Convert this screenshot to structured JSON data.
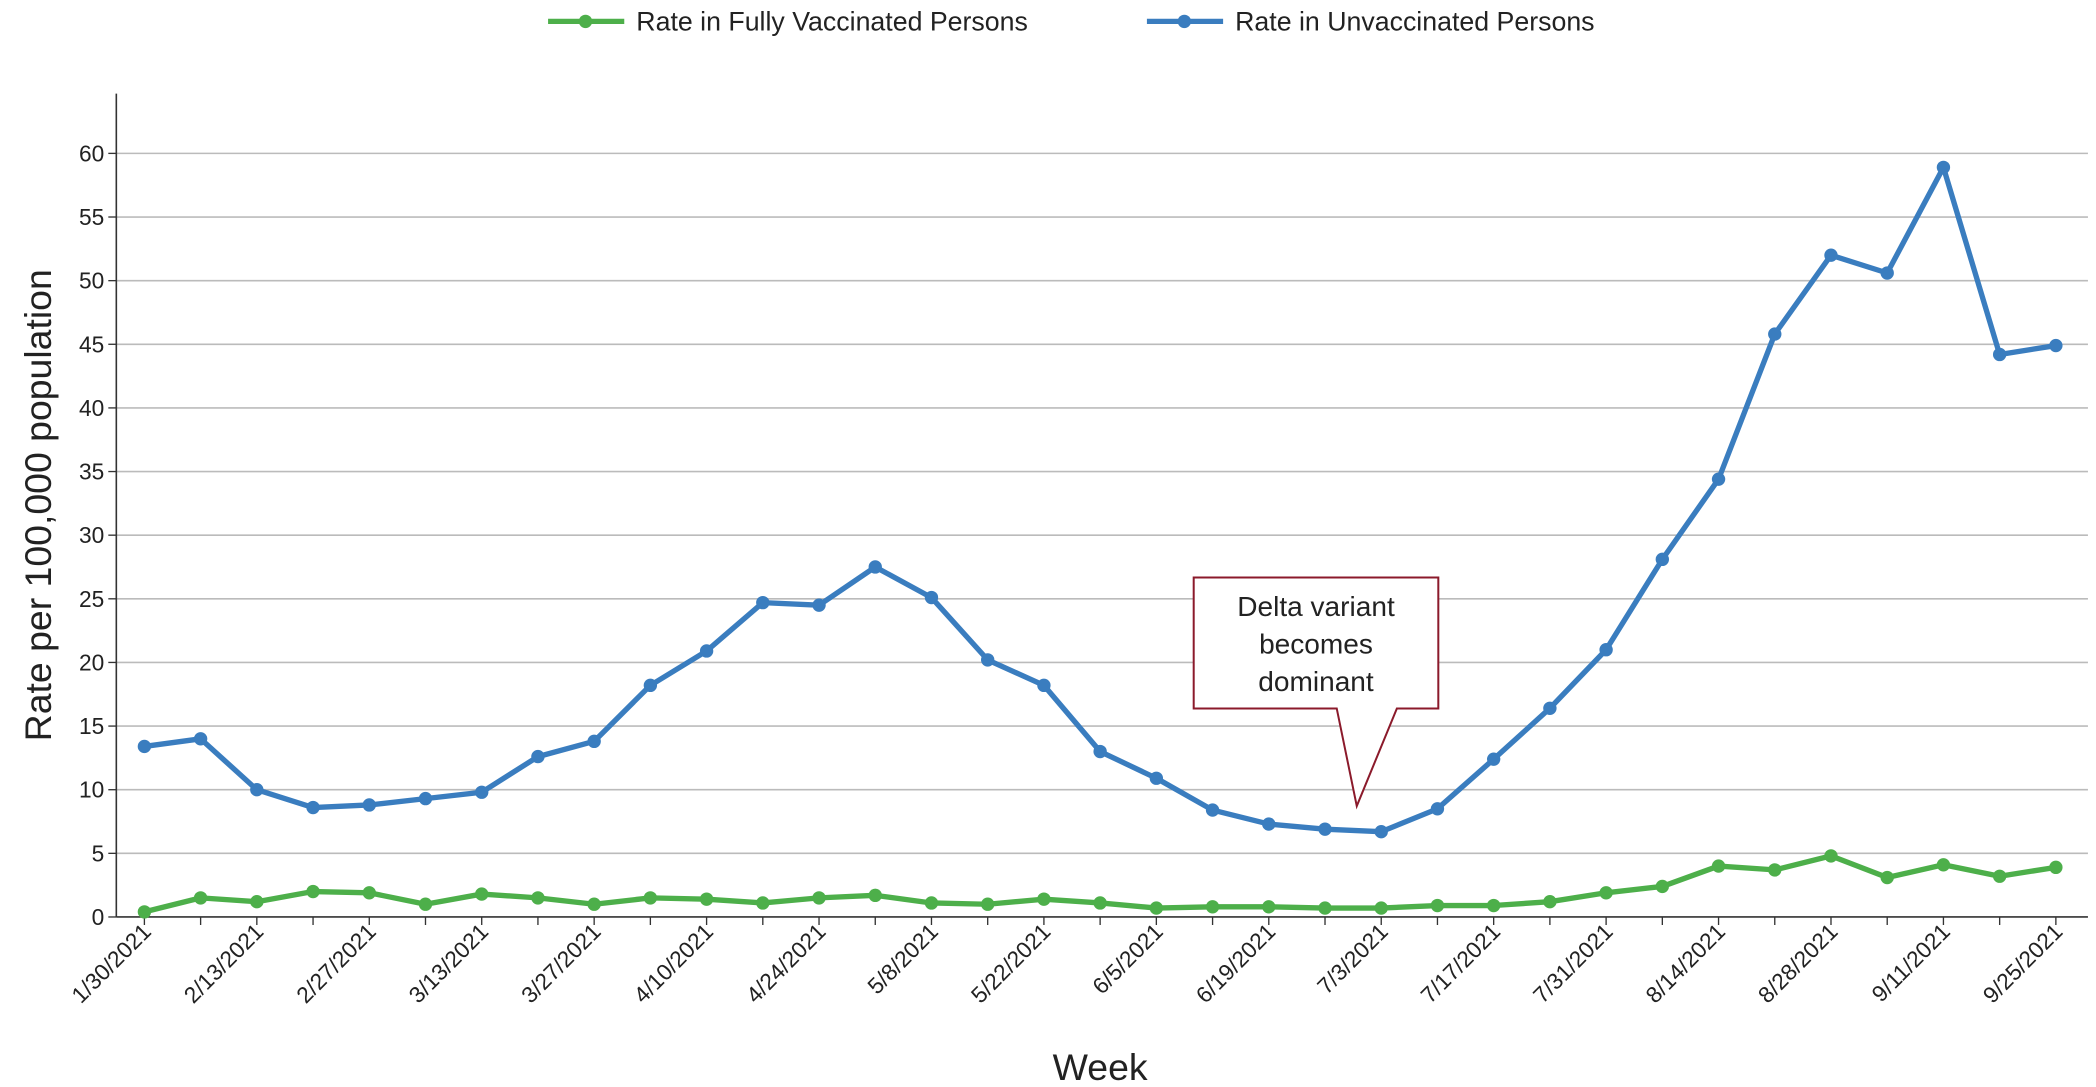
{
  "chart_data": {
    "type": "line",
    "x_label": "Week",
    "y_label": "Rate per 100,000 population",
    "categories": [
      "1/30/2021",
      null,
      "2/13/2021",
      null,
      "2/27/2021",
      null,
      "3/13/2021",
      null,
      "3/27/2021",
      null,
      "4/10/2021",
      null,
      "4/24/2021",
      null,
      "5/8/2021",
      null,
      "5/22/2021",
      null,
      "6/5/2021",
      null,
      "6/19/2021",
      null,
      "7/3/2021",
      null,
      "7/17/2021",
      null,
      "7/31/2021",
      null,
      "8/14/2021",
      null,
      "8/28/2021",
      null,
      "9/11/2021",
      null,
      "9/25/2021"
    ],
    "series": [
      {
        "name": "Rate in Fully Vaccinated Persons",
        "color": "#4daf4a",
        "values": [
          0.4,
          1.5,
          1.2,
          2.0,
          1.9,
          1.0,
          1.8,
          1.5,
          1.0,
          1.5,
          1.4,
          1.1,
          1.5,
          1.7,
          1.1,
          1.0,
          1.4,
          1.1,
          0.7,
          0.8,
          0.8,
          0.7,
          0.7,
          0.9,
          0.9,
          1.2,
          1.9,
          2.4,
          4.0,
          3.7,
          4.8,
          3.1,
          4.1,
          3.2,
          3.9
        ]
      },
      {
        "name": "Rate in Unvaccinated Persons",
        "color": "#3a7dbf",
        "values": [
          13.4,
          14.0,
          10.0,
          8.6,
          8.8,
          9.3,
          9.8,
          12.6,
          13.8,
          18.2,
          20.9,
          24.7,
          24.5,
          27.5,
          25.1,
          20.2,
          18.2,
          13.0,
          10.9,
          8.4,
          7.3,
          6.9,
          6.7,
          8.5,
          12.4,
          16.4,
          21.0,
          28.1,
          34.4,
          45.8,
          52.0,
          50.6,
          58.9,
          44.2,
          44.9
        ]
      }
    ],
    "ylim": [
      0,
      64.7
    ],
    "yticks": [
      0,
      5,
      10,
      15,
      20,
      25,
      30,
      35,
      40,
      45,
      50,
      55,
      60
    ],
    "grid": true,
    "legend": "top",
    "annotation": {
      "lines": [
        "Delta variant",
        "becomes",
        "dominant"
      ],
      "color": "#8b1a2b"
    }
  }
}
